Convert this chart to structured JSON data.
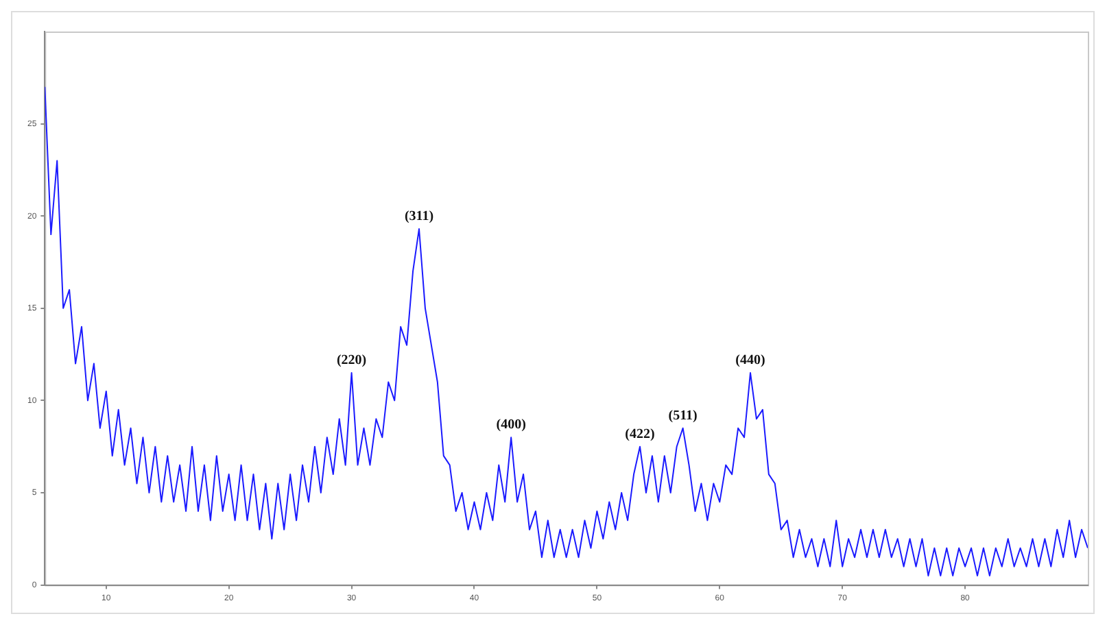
{
  "chart_data": {
    "type": "line",
    "xlim": [
      5,
      90
    ],
    "ylim": [
      0,
      30
    ],
    "xticks": [
      10,
      20,
      30,
      40,
      50,
      60,
      70,
      80
    ],
    "yticks": [
      0,
      5,
      10,
      15,
      20,
      25
    ],
    "grid": false,
    "legend": false,
    "marker": "none",
    "line_style": "solid",
    "series": [
      {
        "color": "#1a1aff",
        "x": [
          5,
          5.5,
          6,
          6.5,
          7,
          7.5,
          8,
          8.5,
          9,
          9.5,
          10,
          10.5,
          11,
          11.5,
          12,
          12.5,
          13,
          13.5,
          14,
          14.5,
          15,
          15.5,
          16,
          16.5,
          17,
          17.5,
          18,
          18.5,
          19,
          19.5,
          20,
          20.5,
          21,
          21.5,
          22,
          22.5,
          23,
          23.5,
          24,
          24.5,
          25,
          25.5,
          26,
          26.5,
          27,
          27.5,
          28,
          28.5,
          29,
          29.5,
          30,
          30.5,
          31,
          31.5,
          32,
          32.5,
          33,
          33.5,
          34,
          34.5,
          35,
          35.5,
          36,
          36.5,
          37,
          37.5,
          38,
          38.5,
          39,
          39.5,
          40,
          40.5,
          41,
          41.5,
          42,
          42.5,
          43,
          43.5,
          44,
          44.5,
          45,
          45.5,
          46,
          46.5,
          47,
          47.5,
          48,
          48.5,
          49,
          49.5,
          50,
          50.5,
          51,
          51.5,
          52,
          52.5,
          53,
          53.5,
          54,
          54.5,
          55,
          55.5,
          56,
          56.5,
          57,
          57.5,
          58,
          58.5,
          59,
          59.5,
          60,
          60.5,
          61,
          61.5,
          62,
          62.5,
          63,
          63.5,
          64,
          64.5,
          65,
          65.5,
          66,
          66.5,
          67,
          67.5,
          68,
          68.5,
          69,
          69.5,
          70,
          70.5,
          71,
          71.5,
          72,
          72.5,
          73,
          73.5,
          74,
          74.5,
          75,
          75.5,
          76,
          76.5,
          77,
          77.5,
          78,
          78.5,
          79,
          79.5,
          80,
          80.5,
          81,
          81.5,
          82,
          82.5,
          83,
          83.5,
          84,
          84.5,
          85,
          85.5,
          86,
          86.5,
          87,
          87.5,
          88,
          88.5,
          89,
          89.5,
          90
        ],
        "values": [
          27,
          19,
          23,
          15,
          16,
          12,
          14,
          10,
          12,
          8.5,
          10.5,
          7,
          9.5,
          6.5,
          8.5,
          5.5,
          8,
          5,
          7.5,
          4.5,
          7,
          4.5,
          6.5,
          4,
          7.5,
          4,
          6.5,
          3.5,
          7,
          4,
          6,
          3.5,
          6.5,
          3.5,
          6,
          3,
          5.5,
          2.5,
          5.5,
          3,
          6,
          3.5,
          6.5,
          4.5,
          7.5,
          5,
          8,
          6,
          9,
          6.5,
          11.5,
          6.5,
          8.5,
          6.5,
          9,
          8,
          11,
          10,
          14,
          13,
          17,
          19.3,
          15,
          13,
          11,
          7,
          6.5,
          4,
          5,
          3,
          4.5,
          3,
          5,
          3.5,
          6.5,
          4.5,
          8,
          4.5,
          6,
          3,
          4,
          1.5,
          3.5,
          1.5,
          3,
          1.5,
          3,
          1.5,
          3.5,
          2,
          4,
          2.5,
          4.5,
          3,
          5,
          3.5,
          6,
          7.5,
          5,
          7,
          4.5,
          7,
          5,
          7.5,
          8.5,
          6.5,
          4,
          5.5,
          3.5,
          5.5,
          4.5,
          6.5,
          6,
          8.5,
          8,
          11.5,
          9,
          9.5,
          6,
          5.5,
          3,
          3.5,
          1.5,
          3,
          1.5,
          2.5,
          1,
          2.5,
          1,
          3.5,
          1,
          2.5,
          1.5,
          3,
          1.5,
          3,
          1.5,
          3,
          1.5,
          2.5,
          1,
          2.5,
          1,
          2.5,
          0.5,
          2,
          0.5,
          2,
          0.5,
          2,
          1,
          2,
          0.5,
          2,
          0.5,
          2,
          1,
          2.5,
          1,
          2,
          1,
          2.5,
          1,
          2.5,
          1,
          3,
          1.5,
          3.5,
          1.5,
          3,
          2
        ]
      }
    ],
    "annotations": [
      {
        "text": "(220)",
        "x": 30,
        "y": 11.5
      },
      {
        "text": "(311)",
        "x": 35.5,
        "y": 19.3
      },
      {
        "text": "(400)",
        "x": 43,
        "y": 8
      },
      {
        "text": "(422)",
        "x": 53.5,
        "y": 7.5
      },
      {
        "text": "(511)",
        "x": 57,
        "y": 8.5
      },
      {
        "text": "(440)",
        "x": 62.5,
        "y": 11.5
      }
    ]
  }
}
